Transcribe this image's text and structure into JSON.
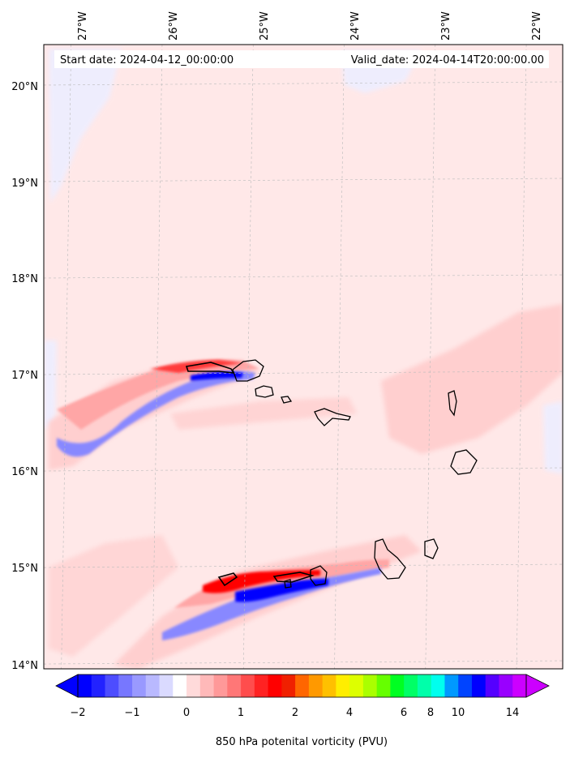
{
  "header": {
    "start_date": "Start date: 2024-04-12_00:00:00",
    "valid_date": "Valid_date: 2024-04-14T20:00:00.00"
  },
  "map": {
    "lon_range": [
      -27.3,
      -21.6
    ],
    "lat_range": [
      13.95,
      20.42
    ],
    "lon_ticks": [
      "27°W",
      "26°W",
      "25°W",
      "24°W",
      "23°W",
      "22°W"
    ],
    "lat_ticks": [
      "20°N",
      "19°N",
      "18°N",
      "17°N",
      "16°N",
      "15°N",
      "14°N"
    ],
    "lon_tick_values": [
      -27,
      -26,
      -25,
      -24,
      -23,
      -22
    ],
    "lat_tick_values": [
      20,
      19,
      18,
      17,
      16,
      15,
      14
    ],
    "field": "850 hPa potential vorticity",
    "regions": [
      "Cape Verde Islands"
    ],
    "colors": {
      "background": "#ffe8e8",
      "light_blue": "#eeeeff",
      "light_red": "#ffcfcf",
      "mid_red": "#ffa6a6",
      "strong_red": "#ff3a3a",
      "deep_red": "#ff0000",
      "mid_blue": "#8888ff",
      "deep_blue": "#0000ff",
      "coast": "#000000",
      "grid": "#bbbbbb"
    }
  },
  "colorbar": {
    "label": "850 hPa potenital vorticity (PVU)",
    "tick_labels": [
      "−2",
      "−1",
      "0",
      "1",
      "2",
      "4",
      "6",
      "8",
      "10",
      "14"
    ],
    "colors": [
      "#0000ff",
      "#2222ff",
      "#4d4dff",
      "#7777ff",
      "#9999ff",
      "#b9b9ff",
      "#dadaff",
      "#ffffff",
      "#ffdada",
      "#ffb9b9",
      "#ff9999",
      "#ff7777",
      "#ff4d4d",
      "#ff2222",
      "#ff0000",
      "#f02000",
      "#ff6600",
      "#ff9900",
      "#ffc000",
      "#ffee00",
      "#ddff00",
      "#aaff00",
      "#66ff00",
      "#00ff22",
      "#00ff66",
      "#00ffaa",
      "#00ffee",
      "#0099ff",
      "#0044ff",
      "#0000ff",
      "#5500ff",
      "#9900ff",
      "#cc00ff"
    ]
  }
}
